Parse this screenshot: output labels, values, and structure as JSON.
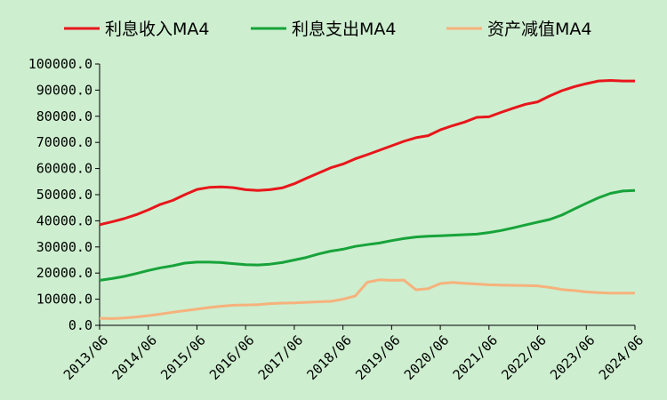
{
  "chart_data": {
    "type": "line",
    "title": "",
    "xlabel": "",
    "ylabel": "",
    "ylim": [
      0,
      100000
    ],
    "yticks": [
      "0.0",
      "10000.0",
      "20000.0",
      "30000.0",
      "40000.0",
      "50000.0",
      "60000.0",
      "70000.0",
      "80000.0",
      "90000.0",
      "100000.0"
    ],
    "xticks": [
      "2013/06",
      "2014/06",
      "2015/06",
      "2016/06",
      "2017/06",
      "2018/06",
      "2019/06",
      "2020/06",
      "2021/06",
      "2022/06",
      "2023/06",
      "2024/06"
    ],
    "legend_position": "top",
    "grid": false,
    "x": [
      "2013/06",
      "2013/09",
      "2013/12",
      "2014/03",
      "2014/06",
      "2014/09",
      "2014/12",
      "2015/03",
      "2015/06",
      "2015/09",
      "2015/12",
      "2016/03",
      "2016/06",
      "2016/09",
      "2016/12",
      "2017/03",
      "2017/06",
      "2017/09",
      "2017/12",
      "2018/03",
      "2018/06",
      "2018/09",
      "2018/12",
      "2019/03",
      "2019/06",
      "2019/09",
      "2019/12",
      "2020/03",
      "2020/06",
      "2020/09",
      "2020/12",
      "2021/03",
      "2021/06",
      "2021/09",
      "2021/12",
      "2022/03",
      "2022/06",
      "2022/09",
      "2022/12",
      "2023/03",
      "2023/06",
      "2023/09",
      "2023/12",
      "2024/03",
      "2024/06"
    ],
    "series": [
      {
        "name": "利息收入MA4",
        "color": "#e8161b",
        "values": [
          38500,
          39600,
          40800,
          42300,
          44200,
          46300,
          47800,
          50000,
          52000,
          52800,
          53000,
          52700,
          51900,
          51600,
          51900,
          52600,
          54200,
          56300,
          58300,
          60300,
          61700,
          63700,
          65300,
          67000,
          68700,
          70400,
          71800,
          72600,
          74800,
          76400,
          77800,
          79600,
          79800,
          81500,
          83100,
          84600,
          85500,
          87800,
          89800,
          91300,
          92500,
          93500,
          93700,
          93500,
          93500
        ]
      },
      {
        "name": "利息支出MA4",
        "color": "#17a33a",
        "values": [
          17200,
          17900,
          18700,
          19800,
          21000,
          22000,
          22800,
          23800,
          24200,
          24200,
          24000,
          23600,
          23200,
          23100,
          23400,
          24000,
          25000,
          26000,
          27300,
          28400,
          29100,
          30200,
          30900,
          31500,
          32400,
          33200,
          33800,
          34100,
          34300,
          34500,
          34700,
          34900,
          35500,
          36300,
          37300,
          38400,
          39500,
          40500,
          42200,
          44500,
          46700,
          48800,
          50500,
          51400,
          51600
        ]
      },
      {
        "name": "资产减值MA4",
        "color": "#f6b27c",
        "values": [
          2700,
          2600,
          2800,
          3200,
          3700,
          4300,
          5000,
          5600,
          6200,
          6800,
          7300,
          7700,
          7800,
          7900,
          8300,
          8500,
          8600,
          8800,
          9000,
          9200,
          10000,
          11200,
          16500,
          17400,
          17200,
          17300,
          13600,
          14000,
          16000,
          16400,
          16100,
          15800,
          15500,
          15400,
          15300,
          15200,
          15100,
          14500,
          13700,
          13300,
          12800,
          12500,
          12300,
          12300,
          12300
        ]
      }
    ]
  }
}
